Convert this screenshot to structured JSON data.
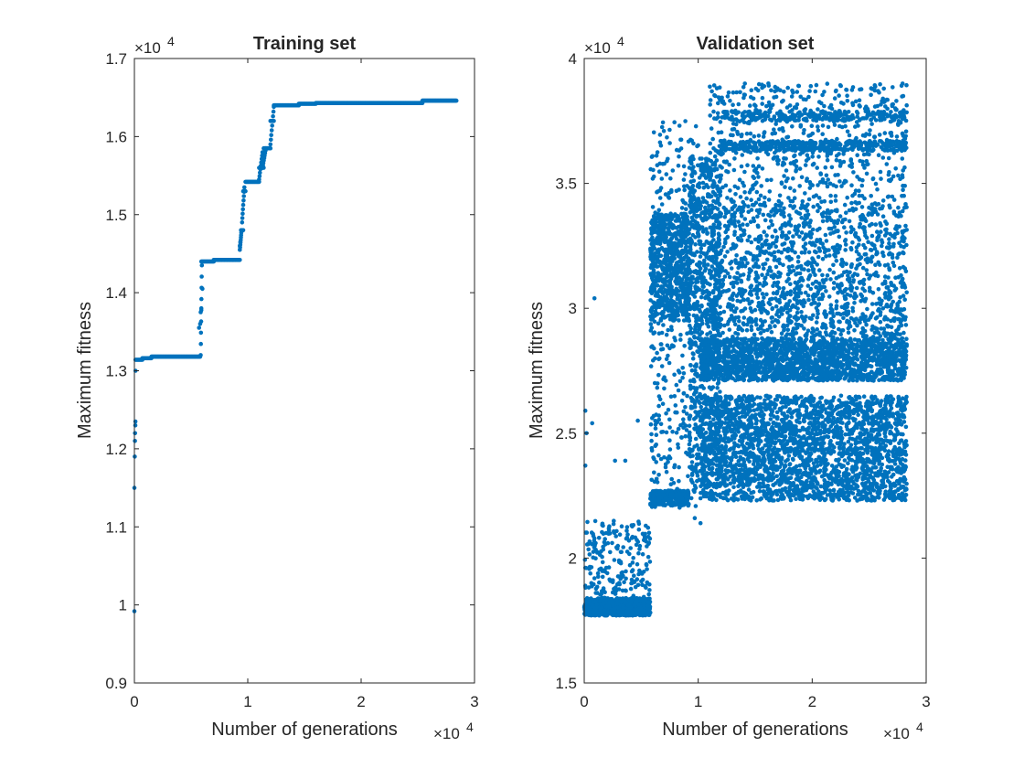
{
  "figure": {
    "background": "#ffffff",
    "marker_color": "#0072BD"
  },
  "chart_data": [
    {
      "type": "scatter",
      "title": "Training set",
      "xlabel": "Number of generations",
      "ylabel": "Maximum fitness",
      "x_multiplier": "×10",
      "y_multiplier": "×10",
      "exponent": "4",
      "xlim": [
        0,
        30000
      ],
      "ylim": [
        9000,
        17000
      ],
      "xticks": [
        0,
        10000,
        20000,
        30000
      ],
      "xtick_labels": [
        "0",
        "1",
        "2",
        "3"
      ],
      "yticks": [
        9000,
        10000,
        11000,
        12000,
        13000,
        14000,
        15000,
        16000,
        17000
      ],
      "ytick_labels": [
        "0.9",
        "1",
        "1.1",
        "1.2",
        "1.3",
        "1.4",
        "1.5",
        "1.6",
        "1.7"
      ],
      "grid": false,
      "series": [
        {
          "color": "#0072BD",
          "outliers": [
            [
              0,
              9920
            ],
            [
              0,
              11500
            ],
            [
              30,
              11900
            ],
            [
              50,
              12100
            ],
            [
              60,
              12200
            ],
            [
              80,
              12300
            ],
            [
              90,
              12350
            ],
            [
              100,
              13000
            ],
            [
              5700,
              13550
            ],
            [
              5800,
              13600
            ],
            [
              5850,
              13750
            ],
            [
              5900,
              13800
            ],
            [
              6000,
              14050
            ],
            [
              9300,
              14600
            ],
            [
              9350,
              14650
            ]
          ],
          "steps": [
            {
              "x0": 100,
              "x1": 700,
              "y": 13140
            },
            {
              "x0": 700,
              "x1": 1500,
              "y": 13160
            },
            {
              "x0": 1500,
              "x1": 5800,
              "y": 13180
            },
            {
              "x0": 5900,
              "x1": 7000,
              "y": 14400
            },
            {
              "x0": 7000,
              "x1": 9300,
              "y": 14420
            },
            {
              "x0": 9400,
              "x1": 9600,
              "y": 14800
            },
            {
              "x0": 9600,
              "x1": 9800,
              "y": 15300
            },
            {
              "x0": 9800,
              "x1": 11000,
              "y": 15420
            },
            {
              "x0": 11000,
              "x1": 11400,
              "y": 15600
            },
            {
              "x0": 11400,
              "x1": 12000,
              "y": 15850
            },
            {
              "x0": 12000,
              "x1": 12300,
              "y": 16200
            },
            {
              "x0": 12300,
              "x1": 14500,
              "y": 16400
            },
            {
              "x0": 14500,
              "x1": 16000,
              "y": 16420
            },
            {
              "x0": 16000,
              "x1": 25400,
              "y": 16430
            },
            {
              "x0": 25400,
              "x1": 28400,
              "y": 16460
            }
          ],
          "rises": [
            {
              "x0": 5850,
              "x1": 5950,
              "y0": 13200,
              "y1": 14350
            },
            {
              "x0": 9300,
              "x1": 9450,
              "y0": 14550,
              "y1": 14800
            },
            {
              "x0": 9500,
              "x1": 9700,
              "y0": 14900,
              "y1": 15350
            },
            {
              "x0": 11000,
              "x1": 11300,
              "y0": 15450,
              "y1": 15800
            },
            {
              "x0": 11300,
              "x1": 11600,
              "y0": 15600,
              "y1": 15850
            },
            {
              "x0": 12000,
              "x1": 12300,
              "y0": 15900,
              "y1": 16380
            }
          ]
        }
      ]
    },
    {
      "type": "scatter",
      "title": "Validation set",
      "xlabel": "Number of generations",
      "ylabel": "Maximum fitness",
      "x_multiplier": "×10",
      "y_multiplier": "×10",
      "exponent": "4",
      "xlim": [
        0,
        30000
      ],
      "ylim": [
        15000,
        40000
      ],
      "xticks": [
        0,
        10000,
        20000,
        30000
      ],
      "xtick_labels": [
        "0",
        "1",
        "2",
        "3"
      ],
      "yticks": [
        15000,
        20000,
        25000,
        30000,
        35000,
        40000
      ],
      "ytick_labels": [
        "1.5",
        "2",
        "2.5",
        "3",
        "3.5",
        "4"
      ],
      "grid": false,
      "series": [
        {
          "color": "#0072BD",
          "outliers": [
            [
              100,
              25900
            ],
            [
              100,
              23700
            ],
            [
              200,
              25000
            ],
            [
              900,
              30400
            ],
            [
              700,
              25400
            ],
            [
              3600,
              23900
            ],
            [
              2700,
              23900
            ],
            [
              4700,
              25500
            ],
            [
              9700,
              21600
            ],
            [
              10200,
              21400
            ]
          ],
          "regions": [
            {
              "x0": 0,
              "x1": 5800,
              "y0": 17700,
              "y1": 18400,
              "n": 700
            },
            {
              "x0": 0,
              "x1": 5800,
              "y0": 17700,
              "y1": 21500,
              "n": 260
            },
            {
              "x0": 5800,
              "x1": 9200,
              "y0": 22100,
              "y1": 22700,
              "n": 250
            },
            {
              "x0": 5800,
              "x1": 9200,
              "y0": 29500,
              "y1": 33800,
              "n": 650
            },
            {
              "x0": 5800,
              "x1": 10000,
              "y0": 22000,
              "y1": 37500,
              "n": 420
            },
            {
              "x0": 9200,
              "x1": 12000,
              "y0": 29000,
              "y1": 36000,
              "n": 480
            },
            {
              "x0": 9200,
              "x1": 12000,
              "y0": 23000,
              "y1": 29000,
              "n": 260
            },
            {
              "x0": 10200,
              "x1": 28300,
              "y0": 27100,
              "y1": 28800,
              "n": 1800
            },
            {
              "x0": 10200,
              "x1": 28300,
              "y0": 22300,
              "y1": 26500,
              "n": 2600
            },
            {
              "x0": 11000,
              "x1": 28300,
              "y0": 28800,
              "y1": 34200,
              "n": 1400
            },
            {
              "x0": 11000,
              "x1": 28300,
              "y0": 34200,
              "y1": 39000,
              "n": 650
            },
            {
              "x0": 12000,
              "x1": 28300,
              "y0": 36300,
              "y1": 36700,
              "n": 350
            },
            {
              "x0": 12000,
              "x1": 28300,
              "y0": 37500,
              "y1": 37900,
              "n": 220
            }
          ]
        }
      ]
    }
  ]
}
